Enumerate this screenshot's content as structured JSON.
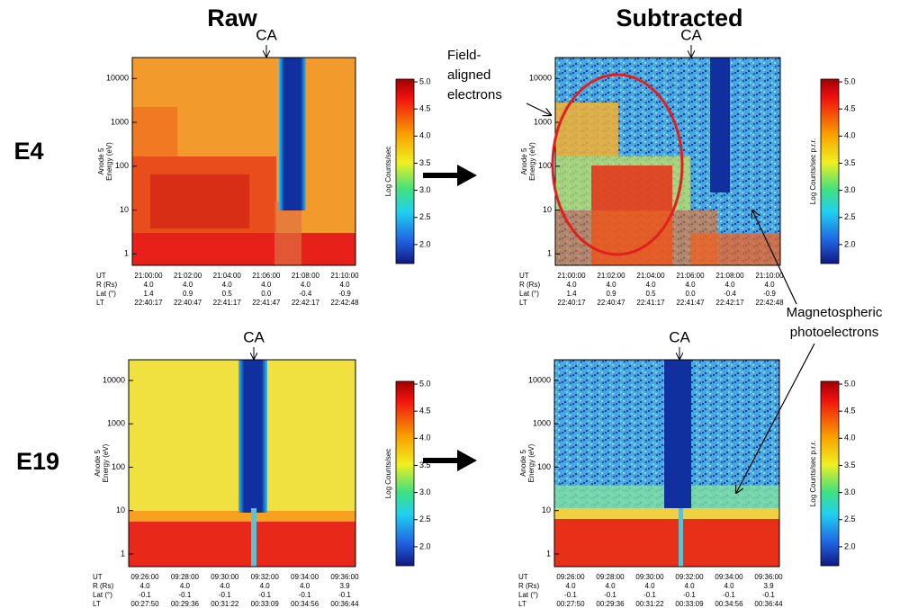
{
  "columns": [
    {
      "title": "Raw"
    },
    {
      "title": "Subtracted"
    }
  ],
  "rows": [
    {
      "label": "E4"
    },
    {
      "label": "E19"
    }
  ],
  "panels": [
    {
      "ca": "CA",
      "y_label": [
        "Anode 5",
        "Energy (eV)"
      ],
      "yscale": "log",
      "ylim": [
        0.55,
        30000
      ],
      "yticks": [
        1,
        10,
        100,
        1000,
        10000
      ],
      "ephemeris": {
        "labels": [
          "UT",
          "R (Rs)",
          "Lat (°)",
          "LT"
        ],
        "values": [
          [
            "21:00:00",
            "21:02:00",
            "21:04:00",
            "21:06:00",
            "21:08:00",
            "21:10:00"
          ],
          [
            "4.0",
            "4.0",
            "4.0",
            "4.0",
            "4.0",
            "4.0"
          ],
          [
            "1.4",
            "0.9",
            "0.5",
            "0.0",
            "-0.4",
            "-0.9"
          ],
          [
            "22:40:17",
            "22:40:47",
            "22:41:17",
            "22:41:47",
            "22:42:17",
            "22:42:48"
          ]
        ]
      },
      "colorbar": {
        "label": "Log Counts/sec",
        "lim": [
          1.65,
          5.05
        ],
        "ticks": [
          {
            "value": 5,
            "label": "5.0"
          },
          {
            "value": 4.5,
            "label": "4.5"
          },
          {
            "value": 4,
            "label": "4.0"
          },
          {
            "value": 3.5,
            "label": "3.5"
          },
          {
            "value": 3,
            "label": "3.0"
          },
          {
            "value": 2.5,
            "label": "2.5"
          },
          {
            "value": 2,
            "label": "2.0"
          }
        ]
      }
    },
    {
      "ca": "CA",
      "y_label": [
        "Anode 5",
        "Energy (eV)"
      ],
      "yscale": "log",
      "ylim": [
        0.55,
        30000
      ],
      "yticks": [
        1,
        10,
        100,
        1000,
        10000
      ],
      "ephemeris": {
        "labels": [
          "UT",
          "R (Rs)",
          "Lat (°)",
          "LT"
        ],
        "values": [
          [
            "21:00:00",
            "21:02:00",
            "21:04:00",
            "21:06:00",
            "21:08:00",
            "21:10:00"
          ],
          [
            "4.0",
            "4.0",
            "4.0",
            "4.0",
            "4.0",
            "4.0"
          ],
          [
            "1.4",
            "0.9",
            "0.5",
            "0.0",
            "-0.4",
            "-0.9"
          ],
          [
            "22:40:17",
            "22:40:47",
            "22:41:17",
            "22:41:47",
            "22:42:17",
            "22:42:48"
          ]
        ]
      },
      "colorbar": {
        "label": "Log Counts/sec p.r.r.",
        "lim": [
          1.65,
          5.05
        ],
        "ticks": [
          {
            "value": 5,
            "label": "5.0"
          },
          {
            "value": 4.5,
            "label": "4.5"
          },
          {
            "value": 4,
            "label": "4.0"
          },
          {
            "value": 3.5,
            "label": "3.5"
          },
          {
            "value": 3,
            "label": "3.0"
          },
          {
            "value": 2.5,
            "label": "2.5"
          },
          {
            "value": 2,
            "label": "2.0"
          }
        ]
      }
    },
    {
      "ca": "CA",
      "y_label": [
        "Anode 5",
        "Energy (eV)"
      ],
      "yscale": "log",
      "ylim": [
        0.51,
        30000
      ],
      "yticks": [
        1,
        10,
        100,
        1000,
        10000
      ],
      "ephemeris": {
        "labels": [
          "UT",
          "R (Rs)",
          "Lat (°)",
          "LT"
        ],
        "values": [
          [
            "09:26:00",
            "09:28:00",
            "09:30:00",
            "09:32:00",
            "09:34:00",
            "09:36:00"
          ],
          [
            "4.0",
            "4.0",
            "4.0",
            "4.0",
            "4.0",
            "3.9"
          ],
          [
            "-0.1",
            "-0.1",
            "-0.1",
            "-0.1",
            "-0.1",
            "-0.1"
          ],
          [
            "00:27:50",
            "00:29:36",
            "00:31:22",
            "00:33:09",
            "00:34:56",
            "00:36:44"
          ]
        ]
      },
      "colorbar": {
        "label": "Log Counts/sec",
        "lim": [
          1.65,
          5.05
        ],
        "ticks": [
          {
            "value": 5,
            "label": "5.0"
          },
          {
            "value": 4.5,
            "label": "4.5"
          },
          {
            "value": 4,
            "label": "4.0"
          },
          {
            "value": 3.5,
            "label": "3.5"
          },
          {
            "value": 3,
            "label": "3.0"
          },
          {
            "value": 2.5,
            "label": "2.5"
          },
          {
            "value": 2,
            "label": "2.0"
          }
        ]
      }
    },
    {
      "ca": "CA",
      "y_label": [
        "Anode 5",
        "Energy (eV)"
      ],
      "yscale": "log",
      "ylim": [
        0.51,
        30000
      ],
      "yticks": [
        1,
        10,
        100,
        1000,
        10000
      ],
      "ephemeris": {
        "labels": [
          "UT",
          "R (Rs)",
          "Lat (°)",
          "LT"
        ],
        "values": [
          [
            "09:26:00",
            "09:28:00",
            "09:30:00",
            "09:32:00",
            "09:34:00",
            "09:36:00"
          ],
          [
            "4.0",
            "4.0",
            "4.0",
            "4.0",
            "4.0",
            "3.9"
          ],
          [
            "-0.1",
            "-0.1",
            "-0.1",
            "-0.1",
            "-0.1",
            "-0.1"
          ],
          [
            "00:27:50",
            "00:29:36",
            "00:31:22",
            "00:33:09",
            "00:34:56",
            "00:36:44"
          ]
        ]
      },
      "colorbar": {
        "label": "Log Counts/sec p.r.r.",
        "lim": [
          1.65,
          5.05
        ],
        "ticks": [
          {
            "value": 5,
            "label": "5.0"
          },
          {
            "value": 4.5,
            "label": "4.5"
          },
          {
            "value": 4,
            "label": "4.0"
          },
          {
            "value": 3.5,
            "label": "3.5"
          },
          {
            "value": 3,
            "label": "3.0"
          },
          {
            "value": 2.5,
            "label": "2.5"
          },
          {
            "value": 2,
            "label": "2.0"
          }
        ]
      }
    }
  ],
  "annotations": {
    "field_aligned": [
      "Field-",
      "aligned",
      "electrons"
    ],
    "photoelectrons": [
      "Magnetospheric",
      "photoelectrons"
    ]
  }
}
